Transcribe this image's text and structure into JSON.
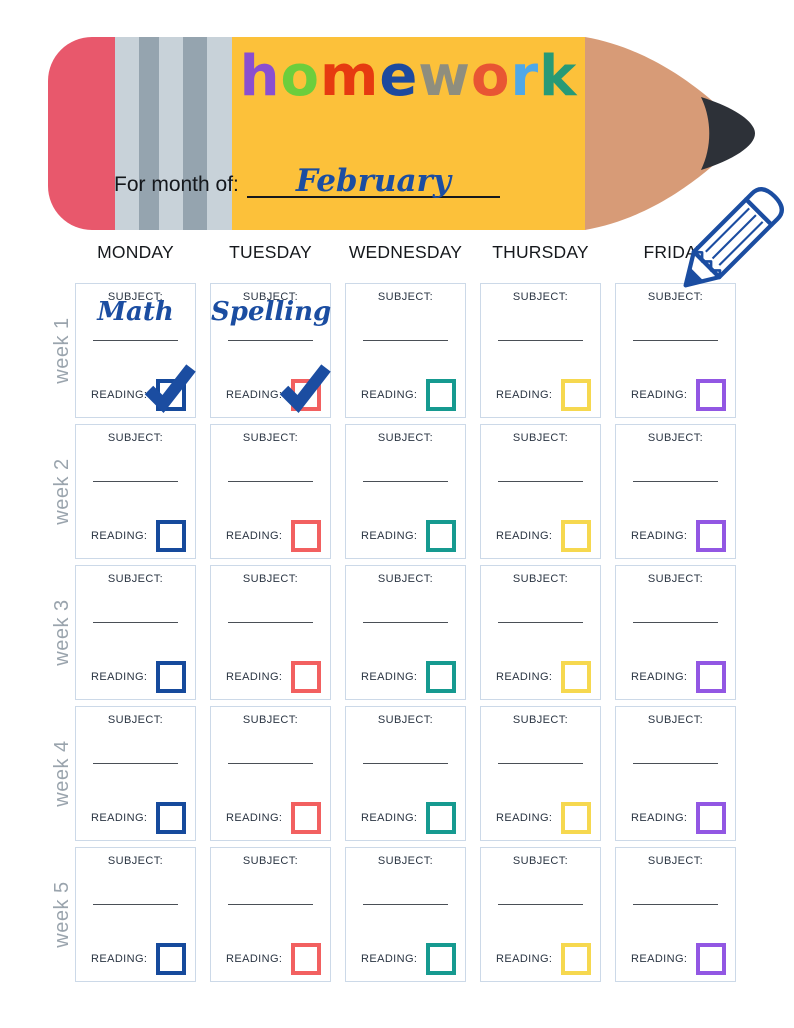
{
  "banner": {
    "title_letters": [
      {
        "char": "h",
        "color": "#8a4fd0"
      },
      {
        "char": "o",
        "color": "#6cce3c"
      },
      {
        "char": "m",
        "color": "#e63a10"
      },
      {
        "char": "e",
        "color": "#1d4a9e"
      },
      {
        "char": "w",
        "color": "#8f8e7e"
      },
      {
        "char": "o",
        "color": "#e85533"
      },
      {
        "char": "r",
        "color": "#4fa8e8"
      },
      {
        "char": "k",
        "color": "#279a76"
      }
    ],
    "month_label": "For month of:",
    "month_value": "February",
    "colors": {
      "eraser": "#e8586c",
      "stripe_light": "#c8d2d9",
      "stripe_dark": "#95a4af",
      "pencil_yellow": "#fcc13a",
      "wood": "#d79b77",
      "graphite": "#2d3138"
    }
  },
  "ink_color": "#1b4da1",
  "days": [
    "MONDAY",
    "TUESDAY",
    "WEDNESDAY",
    "THURSDAY",
    "FRIDAY"
  ],
  "day_checkbox_colors": [
    "#164a9c",
    "#f26060",
    "#169a90",
    "#f6d84f",
    "#9257e3"
  ],
  "weeks": [
    "week 1",
    "week 2",
    "week 3",
    "week 4",
    "week 5"
  ],
  "card": {
    "subject_label": "SUBJECT:",
    "reading_label": "READING:"
  },
  "entries": [
    {
      "week": 1,
      "day": "MONDAY",
      "subject": "Math",
      "reading_checked": true
    },
    {
      "week": 1,
      "day": "TUESDAY",
      "subject": "Spelling",
      "reading_checked": true
    }
  ]
}
